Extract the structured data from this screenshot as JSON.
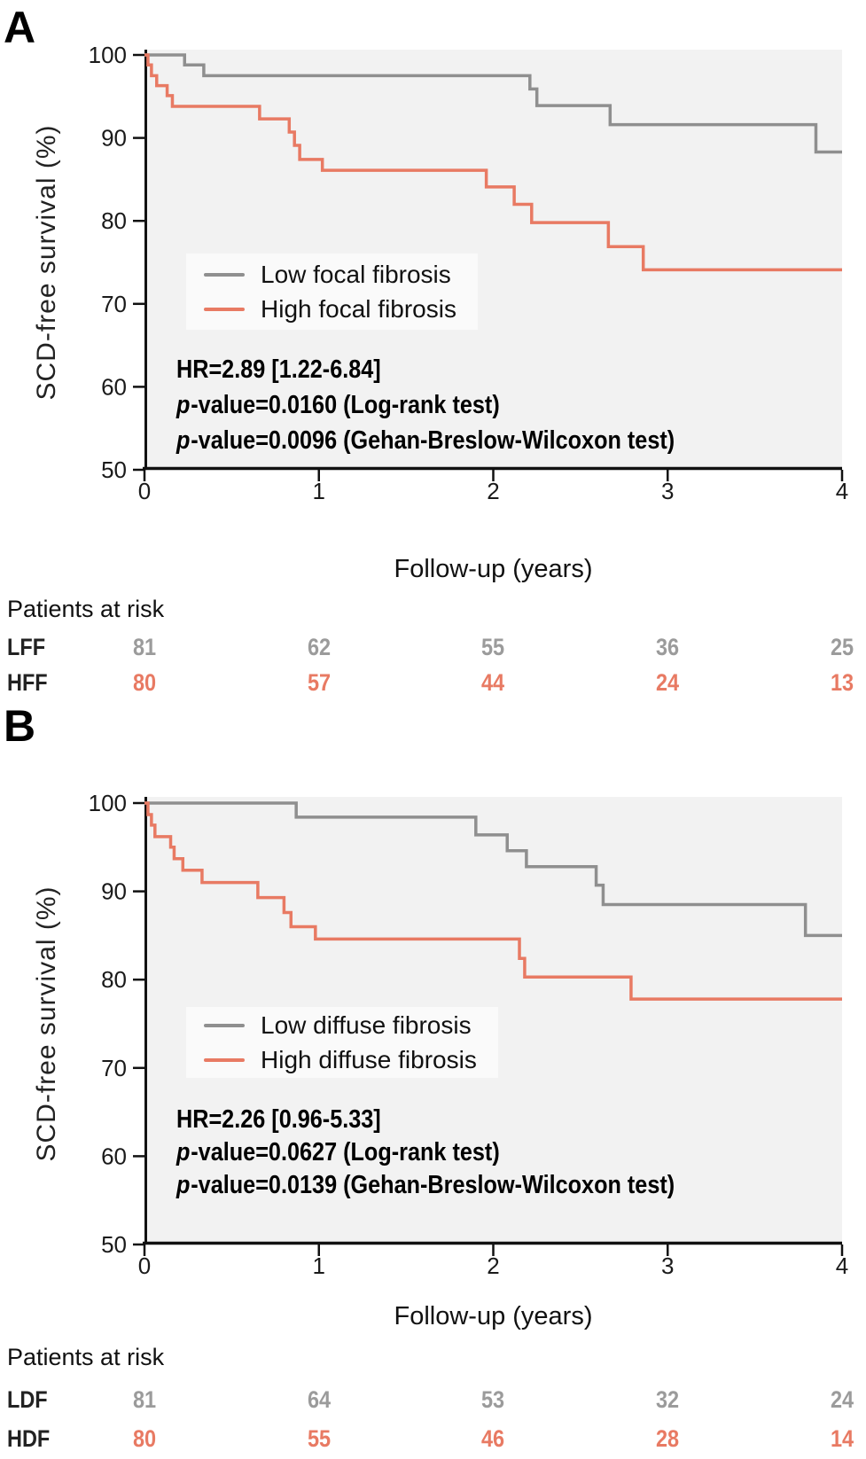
{
  "colors": {
    "curve_gray": "#8f8f8f",
    "curve_salmon": "#e87a63",
    "at_risk_gray": "#9b9b9b",
    "plot_bg": "#f2f2f2",
    "legend_bg": "#fafafa",
    "axis": "#111111",
    "text": "#1a1a1a"
  },
  "chart_data": [
    {
      "panel": "A",
      "type": "line",
      "step": true,
      "xlabel": "Follow-up (years)",
      "ylabel": "SCD-free survival (%)",
      "xlim": [
        0,
        4
      ],
      "ylim": [
        50,
        100
      ],
      "x_ticks": [
        "0",
        "1",
        "2",
        "3",
        "4"
      ],
      "y_ticks": [
        "100",
        "90",
        "80",
        "70",
        "60",
        "50"
      ],
      "grid": false,
      "legend_position": "inside-left",
      "series": [
        {
          "name": "Low focal fibrosis",
          "color": "#8f8f8f",
          "points": [
            [
              0,
              100
            ],
            [
              0.23,
              98.8
            ],
            [
              0.34,
              97.5
            ],
            [
              2.21,
              95.9
            ],
            [
              2.25,
              93.9
            ],
            [
              2.67,
              91.6
            ],
            [
              3.85,
              88.3
            ]
          ]
        },
        {
          "name": "High focal fibrosis",
          "color": "#e87a63",
          "points": [
            [
              0,
              100
            ],
            [
              0.02,
              98.8
            ],
            [
              0.04,
              97.5
            ],
            [
              0.07,
              96.3
            ],
            [
              0.13,
              95.1
            ],
            [
              0.16,
              93.8
            ],
            [
              0.66,
              92.3
            ],
            [
              0.83,
              90.7
            ],
            [
              0.86,
              89.1
            ],
            [
              0.89,
              87.4
            ],
            [
              1.02,
              86.1
            ],
            [
              1.96,
              84.1
            ],
            [
              2.12,
              82.0
            ],
            [
              2.22,
              79.8
            ],
            [
              2.66,
              76.9
            ],
            [
              2.86,
              74.1
            ]
          ]
        }
      ],
      "stats": {
        "hr": "HR=2.89 [1.22-6.84]",
        "p_prefix": "p",
        "p1": "-value=0.0160 (Log-rank test)",
        "p2": "-value=0.0096 (Gehan-Breslow-Wilcoxon test)"
      },
      "at_risk": {
        "title": "Patients at risk",
        "rows": [
          {
            "label": "LFF",
            "color": "#9b9b9b",
            "values": [
              "81",
              "62",
              "55",
              "36",
              "25"
            ]
          },
          {
            "label": "HFF",
            "color": "#e87a63",
            "values": [
              "80",
              "57",
              "44",
              "24",
              "13"
            ]
          }
        ]
      }
    },
    {
      "panel": "B",
      "type": "line",
      "step": true,
      "xlabel": "Follow-up (years)",
      "ylabel": "SCD-free survival (%)",
      "xlim": [
        0,
        4
      ],
      "ylim": [
        50,
        100
      ],
      "x_ticks": [
        "0",
        "1",
        "2",
        "3",
        "4"
      ],
      "y_ticks": [
        "100",
        "90",
        "80",
        "70",
        "60",
        "50"
      ],
      "grid": false,
      "legend_position": "inside-left",
      "series": [
        {
          "name": "Low diffuse fibrosis",
          "color": "#8f8f8f",
          "points": [
            [
              0,
              100
            ],
            [
              0.87,
              98.4
            ],
            [
              1.9,
              96.4
            ],
            [
              2.08,
              94.6
            ],
            [
              2.19,
              92.8
            ],
            [
              2.59,
              90.7
            ],
            [
              2.63,
              88.5
            ],
            [
              3.79,
              85.0
            ]
          ]
        },
        {
          "name": "High diffuse fibrosis",
          "color": "#e87a63",
          "points": [
            [
              0,
              100
            ],
            [
              0.02,
              98.7
            ],
            [
              0.04,
              97.5
            ],
            [
              0.06,
              96.2
            ],
            [
              0.15,
              95.0
            ],
            [
              0.17,
              93.7
            ],
            [
              0.22,
              92.4
            ],
            [
              0.33,
              91.0
            ],
            [
              0.65,
              89.3
            ],
            [
              0.8,
              87.6
            ],
            [
              0.84,
              86.0
            ],
            [
              0.98,
              84.6
            ],
            [
              2.15,
              82.4
            ],
            [
              2.18,
              80.3
            ],
            [
              2.79,
              77.8
            ]
          ]
        }
      ],
      "stats": {
        "hr": "HR=2.26 [0.96-5.33]",
        "p_prefix": "p",
        "p1": "-value=0.0627 (Log-rank test)",
        "p2": "-value=0.0139 (Gehan-Breslow-Wilcoxon test)"
      },
      "at_risk": {
        "title": "Patients at risk",
        "rows": [
          {
            "label": "LDF",
            "color": "#9b9b9b",
            "values": [
              "81",
              "64",
              "53",
              "32",
              "24"
            ]
          },
          {
            "label": "HDF",
            "color": "#e87a63",
            "values": [
              "80",
              "55",
              "46",
              "28",
              "14"
            ]
          }
        ]
      }
    }
  ]
}
